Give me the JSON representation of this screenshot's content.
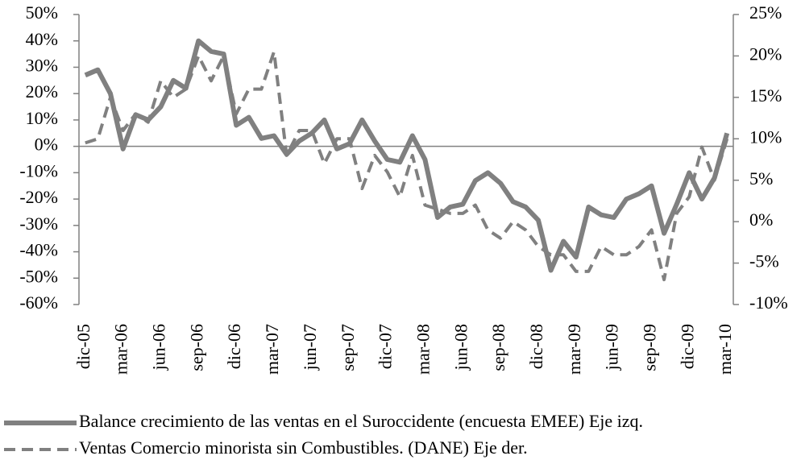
{
  "chart_data": {
    "type": "line",
    "categories": [
      "dic-05",
      null,
      null,
      "mar-06",
      null,
      null,
      "jun-06",
      null,
      null,
      "sep-06",
      null,
      null,
      "dic-06",
      null,
      null,
      "mar-07",
      null,
      null,
      "jun-07",
      null,
      null,
      "sep-07",
      null,
      null,
      "dic-07",
      null,
      null,
      "mar-08",
      null,
      null,
      "jun-08",
      null,
      null,
      "sep-08",
      null,
      null,
      "dic-08",
      null,
      null,
      "mar-09",
      null,
      null,
      "jun-09",
      null,
      null,
      "sep-09",
      null,
      null,
      "dic-09",
      null,
      null,
      "mar-10"
    ],
    "series": [
      {
        "name": "Balance crecimiento de las ventas en el Suroccidente (encuesta EMEE) Eje izq.",
        "color": "#808080",
        "dash": false,
        "values": [
          27,
          29,
          20,
          -1,
          12,
          10,
          15,
          25,
          22,
          40,
          36,
          35,
          8,
          11,
          3,
          4,
          -3,
          2,
          5,
          10,
          -1,
          1,
          10,
          2,
          -5,
          -6,
          4,
          -5,
          -27,
          -23,
          -22,
          -13,
          -10,
          -14,
          -21,
          -23,
          -28,
          -47,
          -36,
          -42,
          -23,
          -26,
          -27,
          -20,
          -18,
          -15,
          -33,
          -22,
          -10,
          -20,
          -12,
          5
        ]
      },
      {
        "name": "Ventas Comercio minorista sin Combustibles. (DANE) Eje der.",
        "color": "#808080",
        "dash": true,
        "axis": "y2",
        "values": [
          9.5,
          10,
          15,
          11,
          13,
          12,
          17,
          15,
          16,
          20,
          17,
          20,
          13,
          16,
          16,
          20.5,
          8,
          11,
          11,
          7,
          10,
          10,
          4,
          8,
          6,
          3,
          8,
          2,
          1.5,
          1,
          1,
          2,
          -1,
          -2,
          0,
          -1,
          -3,
          -4,
          -4,
          -6,
          -6,
          -3,
          -4,
          -4,
          -3,
          -1,
          -7,
          1,
          3,
          9,
          5,
          10
        ]
      }
    ],
    "ylim": [
      -60,
      50
    ],
    "yticks": [
      {
        "value": -60,
        "label": "-60%"
      },
      {
        "value": -50,
        "label": "-50%"
      },
      {
        "value": -40,
        "label": "-40%"
      },
      {
        "value": -30,
        "label": "-30%"
      },
      {
        "value": -20,
        "label": "-20%"
      },
      {
        "value": -10,
        "label": "-10%"
      },
      {
        "value": 0,
        "label": "0%"
      },
      {
        "value": 10,
        "label": "10%"
      },
      {
        "value": 20,
        "label": "20%"
      },
      {
        "value": 30,
        "label": "30%"
      },
      {
        "value": 40,
        "label": "40%"
      },
      {
        "value": 50,
        "label": "50%"
      }
    ],
    "y2lim": [
      -10,
      25
    ],
    "y2ticks": [
      {
        "value": -10,
        "label": "-10%"
      },
      {
        "value": -5,
        "label": "-5%"
      },
      {
        "value": 0,
        "label": "0%"
      },
      {
        "value": 5,
        "label": "5%"
      },
      {
        "value": 10,
        "label": "10%"
      },
      {
        "value": 15,
        "label": "15%"
      },
      {
        "value": 20,
        "label": "20%"
      },
      {
        "value": 25,
        "label": "25%"
      }
    ],
    "grid": false,
    "legend": "bottom"
  }
}
